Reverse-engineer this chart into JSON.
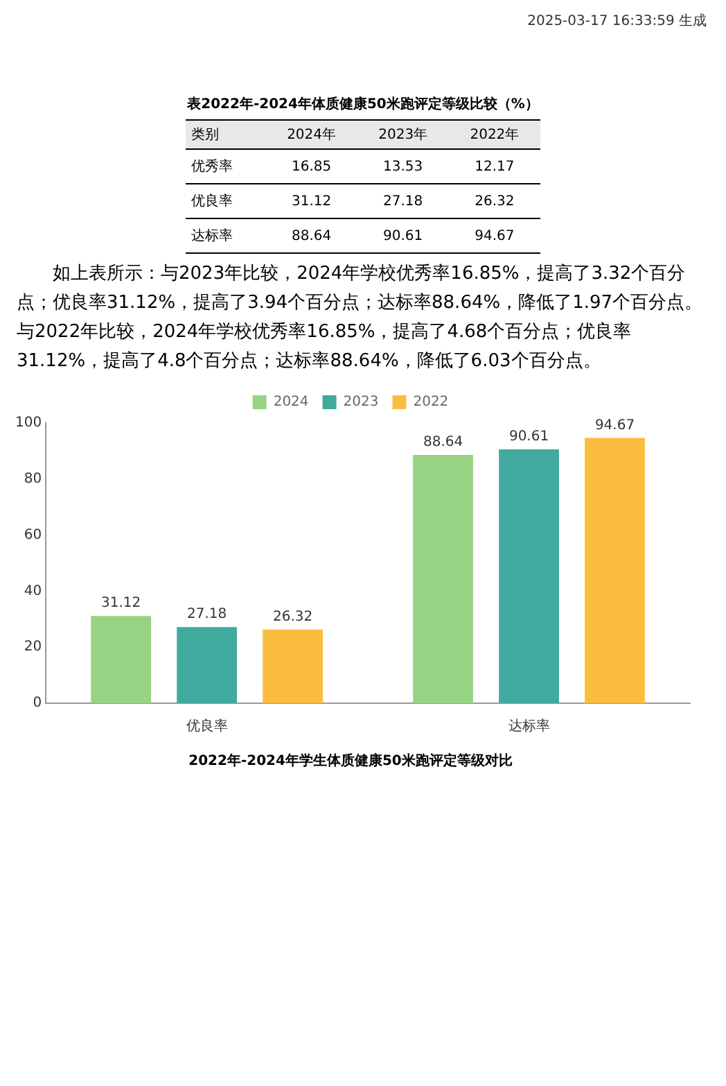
{
  "chart_data": [
    {
      "type": "heatmap",
      "title": "表2022年-2024年体质健康50米跑评定等级比较（%）",
      "ylabel": "类别",
      "categories": [
        "2024年",
        "2023年",
        "2022年"
      ],
      "y_categories": [
        "优秀率",
        "优良率",
        "达标率"
      ],
      "cells": [
        [
          16.85,
          13.53,
          12.17
        ],
        [
          31.12,
          27.18,
          26.32
        ],
        [
          88.64,
          90.61,
          94.67
        ]
      ],
      "data_labels": true,
      "annotations": [
        "2025-03-17 16:33:59 生成",
        "如上表所示：与2023年比较，2024年学校优秀率16.85%，提高了3.32个百分点；优良率31.12%，提高了3.94个百分点；达标率88.64%，降低了1.97个百分点。与2022年比较，2024年学校优秀率16.85%，提高了4.68个百分点；优良率31.12%，提高了4.8个百分点；达标率88.64%，降低了6.03个百分点。"
      ]
    },
    {
      "type": "bar",
      "title": "2022年-2024年学生体质健康50米跑评定等级对比",
      "categories": [
        "优良率",
        "达标率"
      ],
      "series": [
        {
          "name": "2024",
          "color": "#98d383",
          "values": [
            31.12,
            88.64
          ]
        },
        {
          "name": "2023",
          "color": "#40aa9e",
          "values": [
            27.18,
            90.61
          ]
        },
        {
          "name": "2022",
          "color": "#fbbd3e",
          "values": [
            26.32,
            94.67
          ]
        }
      ],
      "ylim": [
        0,
        100
      ],
      "yticks": [
        0,
        20,
        40,
        60,
        80,
        100
      ],
      "grid": false,
      "legend": "top",
      "data_labels": true
    }
  ]
}
